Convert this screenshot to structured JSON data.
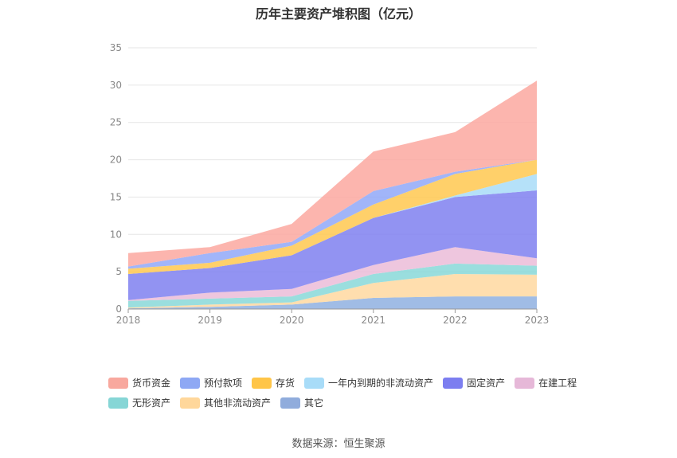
{
  "title": "历年主要资产堆积图（亿元）",
  "source": "数据来源：恒生聚源",
  "chart_data": {
    "type": "area",
    "stacked": true,
    "categories": [
      "2018",
      "2019",
      "2020",
      "2021",
      "2022",
      "2023"
    ],
    "ylim": [
      0,
      35
    ],
    "yticks": [
      0,
      5,
      10,
      15,
      20,
      25,
      30,
      35
    ],
    "grid": true,
    "legend_position": "bottom",
    "series": [
      {
        "name": "其它",
        "color": "#8fb0e0",
        "values": [
          0.1,
          0.3,
          0.6,
          1.5,
          1.7,
          1.7
        ]
      },
      {
        "name": "其他非流动资产",
        "color": "#ffd8a0",
        "values": [
          0.1,
          0.3,
          0.3,
          2.0,
          3.0,
          2.9
        ]
      },
      {
        "name": "无形资产",
        "color": "#88d8d8",
        "values": [
          0.9,
          0.8,
          0.8,
          1.2,
          1.4,
          1.2
        ]
      },
      {
        "name": "在建工程",
        "color": "#ebbcd8",
        "values": [
          0.1,
          0.8,
          1.0,
          1.2,
          2.2,
          1.0
        ]
      },
      {
        "name": "固定资产",
        "color": "#7f80f0",
        "values": [
          3.5,
          3.3,
          4.5,
          6.3,
          6.7,
          9.1
        ]
      },
      {
        "name": "一年内到期的非流动资产",
        "color": "#a8dcf8",
        "values": [
          0,
          0,
          0,
          0,
          0.2,
          2.2
        ]
      },
      {
        "name": "存货",
        "color": "#ffc850",
        "values": [
          0.7,
          0.7,
          1.3,
          1.8,
          2.9,
          1.9
        ]
      },
      {
        "name": "预付款项",
        "color": "#90a8f8",
        "values": [
          0.3,
          1.3,
          0.5,
          1.8,
          0.3,
          0
        ]
      },
      {
        "name": "货币资金",
        "color": "#fca8a0",
        "values": [
          1.8,
          0.8,
          2.4,
          5.3,
          5.3,
          10.6
        ]
      }
    ]
  },
  "legend": {
    "rows": [
      [
        {
          "label": "货币资金",
          "color": "#f8a89e"
        },
        {
          "label": "预付款项",
          "color": "#8ea8f4"
        },
        {
          "label": "存货",
          "color": "#ffc548"
        },
        {
          "label": "一年内到期的非流动资产",
          "color": "#a8dcf8"
        },
        {
          "label": "固定资产",
          "color": "#7c7ef0"
        },
        {
          "label": "在建工程",
          "color": "#e6b8d8"
        }
      ],
      [
        {
          "label": "无形资产",
          "color": "#86d6d6"
        },
        {
          "label": "其他非流动资产",
          "color": "#ffd79b"
        },
        {
          "label": "其它",
          "color": "#90acdc"
        }
      ]
    ]
  }
}
